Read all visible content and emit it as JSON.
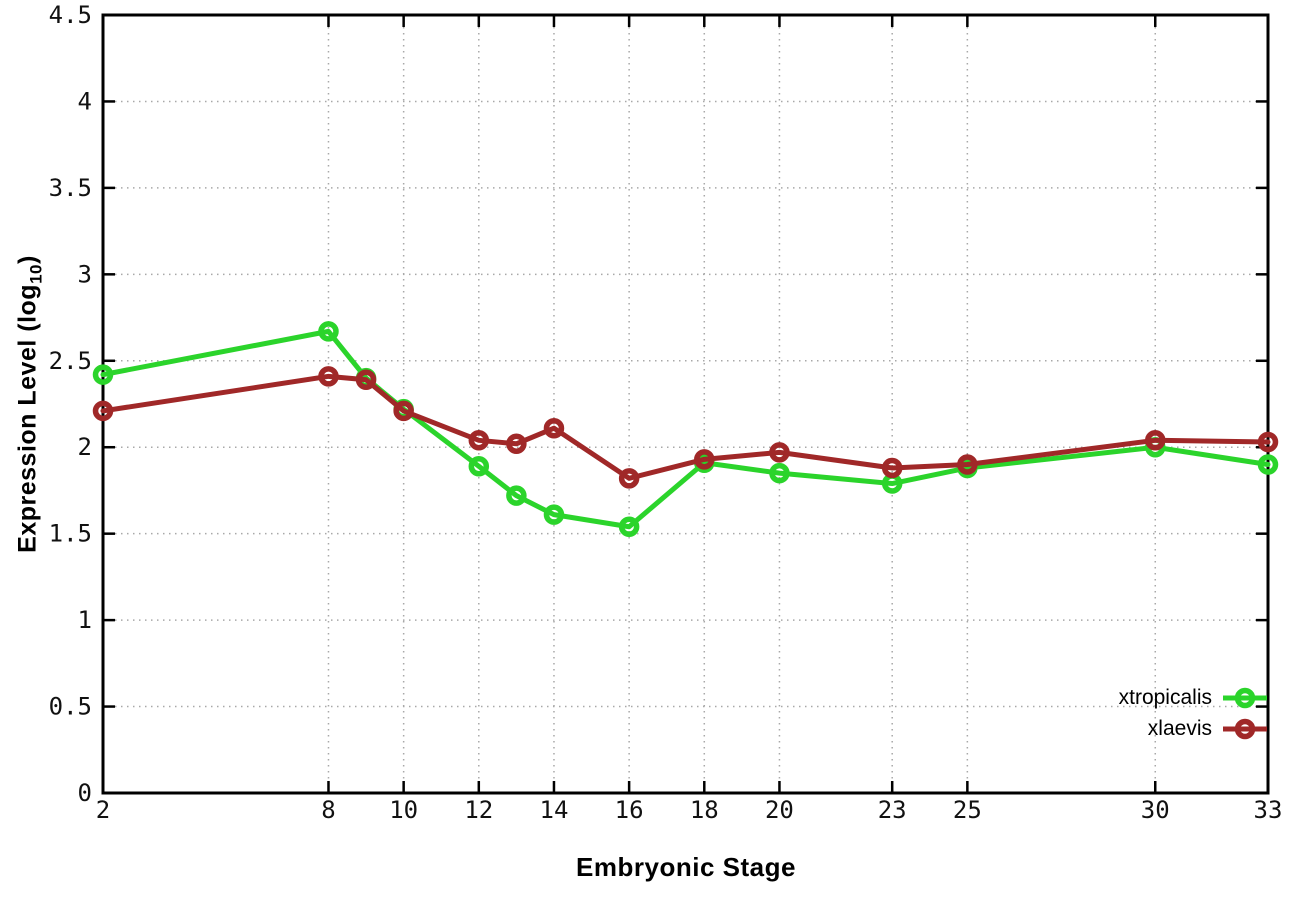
{
  "chart_data": {
    "type": "line",
    "title": "",
    "xlabel": "Embryonic Stage",
    "ylabel": {
      "pre": "Expression Level (log",
      "sub": "10",
      "post": ")"
    },
    "x": [
      2,
      8,
      9,
      10,
      12,
      13,
      14,
      16,
      18,
      20,
      23,
      25,
      30,
      33
    ],
    "series": [
      {
        "name": "xtropicalis",
        "color": "#2bd42b",
        "values": [
          2.42,
          2.67,
          2.4,
          2.22,
          1.89,
          1.72,
          1.61,
          1.54,
          1.91,
          1.85,
          1.79,
          1.88,
          2.0,
          1.9
        ]
      },
      {
        "name": "xlaevis",
        "color": "#a02828",
        "values": [
          2.21,
          2.41,
          2.39,
          2.21,
          2.04,
          2.02,
          2.11,
          1.82,
          1.93,
          1.97,
          1.88,
          1.9,
          2.04,
          2.03
        ]
      }
    ],
    "xlim": [
      2,
      33
    ],
    "ylim": [
      0,
      4.5
    ],
    "xticks": [
      2,
      8,
      10,
      12,
      14,
      16,
      18,
      20,
      23,
      25,
      30,
      33
    ],
    "yticks": [
      0,
      0.5,
      1,
      1.5,
      2,
      2.5,
      3,
      3.5,
      4,
      4.5
    ],
    "grid": true,
    "legend_position": "bottom-right",
    "marker": "open-circle",
    "background": "#ffffff",
    "grid_color": "#a8a8a8",
    "axis_color": "#000000",
    "tick_label_color": "#111111"
  }
}
